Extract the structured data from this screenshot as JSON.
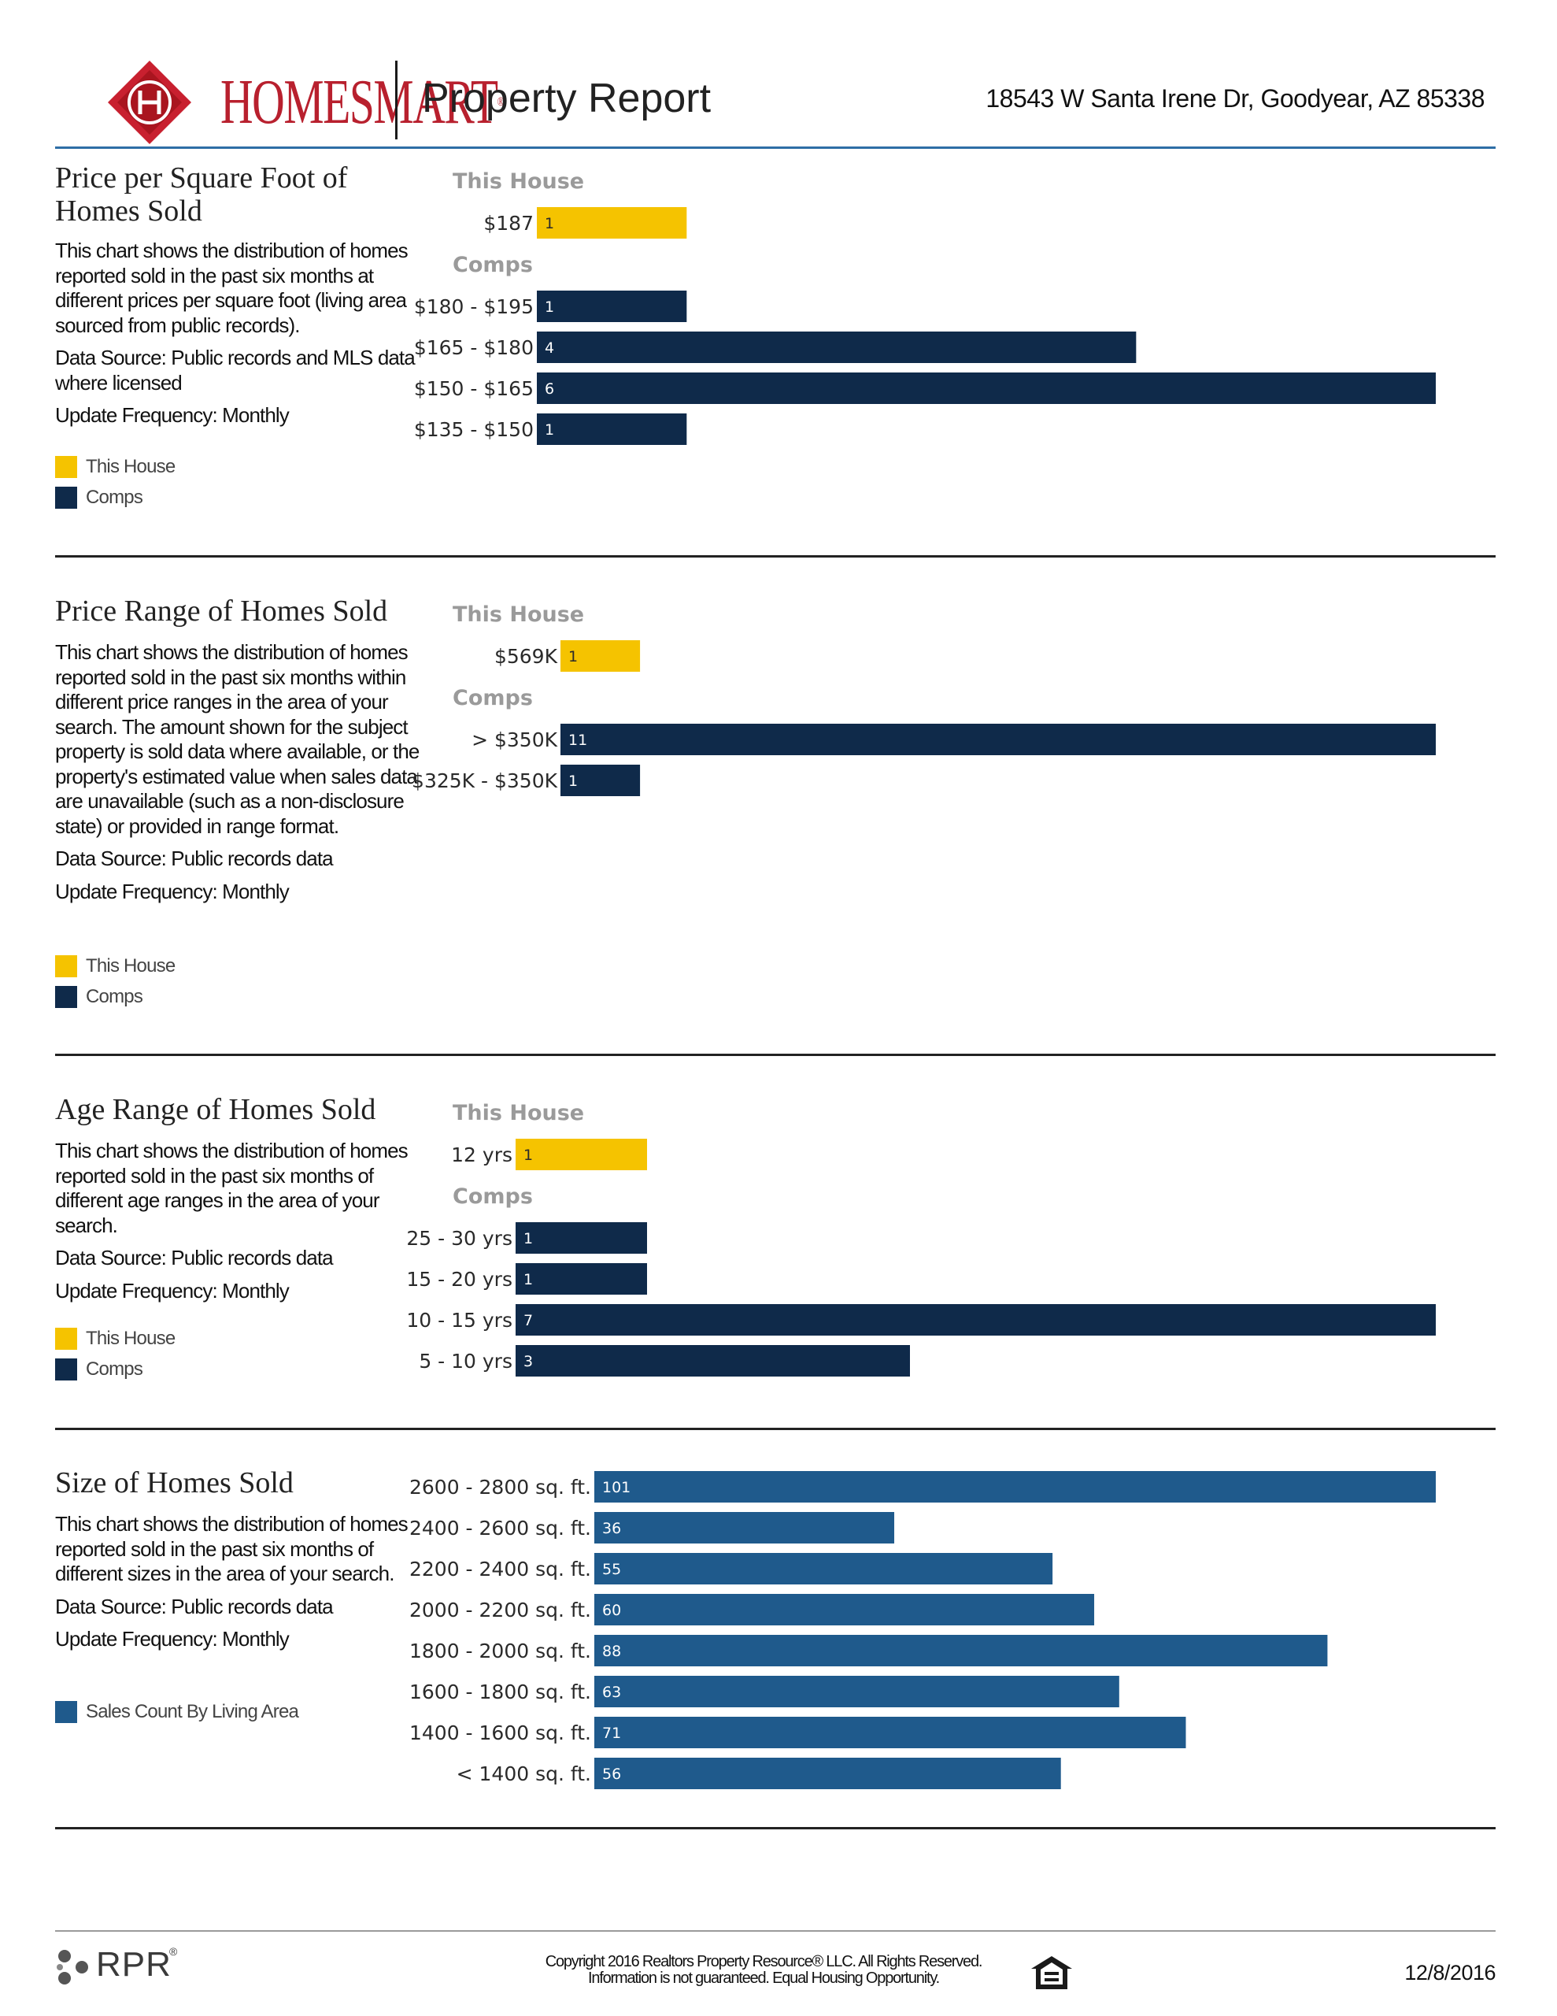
{
  "header": {
    "logo_text": "HOMESMART",
    "title": "Property Report",
    "address": "18543 W Santa Irene Dr, Goodyear, AZ 85338"
  },
  "colors": {
    "this_house": "#f5c300",
    "comps": "#0f2a4a",
    "size_series": "#1f5a8c",
    "accent_rule": "#2e6ea6",
    "brand_red": "#b8202e"
  },
  "sections": [
    {
      "title": "Price per Square Foot of Homes Sold",
      "description": [
        "This chart shows the distribution of homes reported sold in the past six months at different prices per square foot (living area sourced from public records).",
        "Data Source: Public records and MLS data where licensed",
        "Update Frequency: Monthly"
      ],
      "legend": [
        {
          "label": "This House",
          "color": "#f5c300"
        },
        {
          "label": "Comps",
          "color": "#0f2a4a"
        }
      ]
    },
    {
      "title": "Price Range of Homes Sold",
      "description": [
        "This chart shows the distribution of homes reported sold in the past six months within different price ranges in the area of your search. The amount shown for the subject property is sold data where available, or the property's estimated value when sales data are unavailable (such as a non-disclosure state) or provided in range format.",
        "Data Source: Public records data",
        "Update Frequency: Monthly"
      ],
      "legend": [
        {
          "label": "This House",
          "color": "#f5c300"
        },
        {
          "label": "Comps",
          "color": "#0f2a4a"
        }
      ]
    },
    {
      "title": "Age Range of Homes Sold",
      "description": [
        "This chart shows the distribution of homes reported sold in the past six months of different age ranges in the area of your search.",
        "Data Source: Public records data",
        "Update Frequency: Monthly"
      ],
      "legend": [
        {
          "label": "This House",
          "color": "#f5c300"
        },
        {
          "label": "Comps",
          "color": "#0f2a4a"
        }
      ]
    },
    {
      "title": "Size of Homes Sold",
      "description": [
        "This chart shows the distribution of homes reported sold in the past six months of different sizes in the area of your search.",
        "Data Source: Public records data",
        "Update Frequency: Monthly"
      ],
      "legend": [
        {
          "label": "Sales Count By Living Area",
          "color": "#1f5a8c"
        }
      ]
    }
  ],
  "chart_data": [
    {
      "type": "bar",
      "orientation": "horizontal",
      "groups": [
        {
          "label": "This House",
          "color": "#f5c300",
          "categories": [
            "$187"
          ],
          "values": [
            1
          ]
        },
        {
          "label": "Comps",
          "color": "#0f2a4a",
          "categories": [
            "$180 - $195",
            "$165 - $180",
            "$150 - $165",
            "$135 - $150"
          ],
          "values": [
            1,
            4,
            6,
            1
          ]
        }
      ]
    },
    {
      "type": "bar",
      "orientation": "horizontal",
      "groups": [
        {
          "label": "This House",
          "color": "#f5c300",
          "categories": [
            "$569K"
          ],
          "values": [
            1
          ]
        },
        {
          "label": "Comps",
          "color": "#0f2a4a",
          "categories": [
            "> $350K",
            "$325K - $350K"
          ],
          "values": [
            11,
            1
          ]
        }
      ]
    },
    {
      "type": "bar",
      "orientation": "horizontal",
      "groups": [
        {
          "label": "This House",
          "color": "#f5c300",
          "categories": [
            "12 yrs"
          ],
          "values": [
            1
          ]
        },
        {
          "label": "Comps",
          "color": "#0f2a4a",
          "categories": [
            "25 - 30 yrs",
            "15 - 20 yrs",
            "10 - 15 yrs",
            "5 - 10 yrs"
          ],
          "values": [
            1,
            1,
            7,
            3
          ]
        }
      ]
    },
    {
      "type": "bar",
      "orientation": "horizontal",
      "groups": [
        {
          "label": "",
          "color": "#1f5a8c",
          "categories": [
            "2600 - 2800 sq. ft.",
            "2400 - 2600 sq. ft.",
            "2200 - 2400 sq. ft.",
            "2000 - 2200 sq. ft.",
            "1800 - 2000 sq. ft.",
            "1600 - 1800 sq. ft.",
            "1400 - 1600 sq. ft.",
            "< 1400 sq. ft."
          ],
          "values": [
            101,
            36,
            55,
            60,
            88,
            63,
            71,
            56
          ]
        }
      ]
    }
  ],
  "footer": {
    "rpr_logo": "RPR",
    "copyright_line1": "Copyright 2016 Realtors Property Resource® LLC. All Rights Reserved.",
    "copyright_line2": "Information is not guaranteed. Equal Housing Opportunity.",
    "date": "12/8/2016"
  }
}
